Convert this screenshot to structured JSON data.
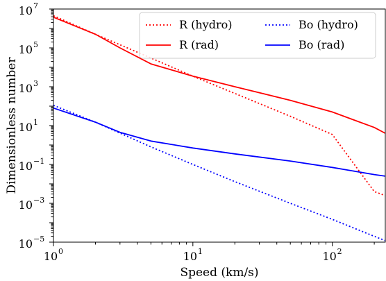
{
  "chart_data": {
    "type": "line",
    "xlabel": "Speed (km/s)",
    "ylabel": "Dimensionless number",
    "xscale": "log",
    "yscale": "log",
    "xlim": [
      1,
      240
    ],
    "ylim": [
      1e-05,
      10000000
    ],
    "x_ticks": [
      {
        "base": "10",
        "exp": "0",
        "value": 1
      },
      {
        "base": "10",
        "exp": "1",
        "value": 10
      },
      {
        "base": "10",
        "exp": "2",
        "value": 100
      }
    ],
    "y_ticks": [
      {
        "base": "10",
        "exp": "−5",
        "value": 1e-05
      },
      {
        "base": "10",
        "exp": "−3",
        "value": 0.001
      },
      {
        "base": "10",
        "exp": "−1",
        "value": 0.1
      },
      {
        "base": "10",
        "exp": "1",
        "value": 10
      },
      {
        "base": "10",
        "exp": "3",
        "value": 1000
      },
      {
        "base": "10",
        "exp": "5",
        "value": 100000
      },
      {
        "base": "10",
        "exp": "7",
        "value": 10000000
      }
    ],
    "grid": false,
    "legend_position": "top-right",
    "series": [
      {
        "name": "R (hydro)",
        "color": "#ff0000",
        "style": "dotted",
        "x": [
          1,
          2,
          5,
          10,
          20,
          50,
          100,
          200,
          240
        ],
        "y": [
          4500000,
          500000,
          30000,
          3500,
          450,
          30,
          3.5,
          0.004,
          0.0025
        ]
      },
      {
        "name": "R (rad)",
        "color": "#ff0000",
        "style": "solid",
        "x": [
          1,
          2,
          3,
          5,
          10,
          20,
          50,
          100,
          200,
          240
        ],
        "y": [
          3800000,
          500000,
          100000,
          15000,
          3500,
          1000,
          200,
          50,
          8,
          4
        ]
      },
      {
        "name": "Bo (hydro)",
        "color": "#0000ff",
        "style": "dotted",
        "x": [
          1,
          2,
          5,
          10,
          20,
          50,
          100,
          200,
          240
        ],
        "y": [
          110,
          15,
          0.8,
          0.1,
          0.013,
          0.001,
          0.00015,
          2e-05,
          1.2e-05
        ]
      },
      {
        "name": "Bo (rad)",
        "color": "#0000ff",
        "style": "solid",
        "x": [
          1,
          2,
          3,
          5,
          10,
          20,
          50,
          100,
          200,
          240
        ],
        "y": [
          80,
          15,
          4.5,
          1.6,
          0.7,
          0.35,
          0.15,
          0.07,
          0.03,
          0.025
        ]
      }
    ]
  }
}
